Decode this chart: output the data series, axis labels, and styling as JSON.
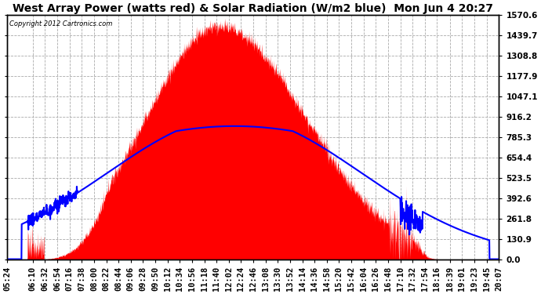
{
  "title": "West Array Power (watts red) & Solar Radiation (W/m2 blue)  Mon Jun 4 20:27",
  "copyright": "Copyright 2012 Cartronics.com",
  "ymax": 1570.6,
  "ymin": 0.0,
  "yticks": [
    0.0,
    130.9,
    261.8,
    392.6,
    523.5,
    654.4,
    785.3,
    916.2,
    1047.1,
    1177.9,
    1308.8,
    1439.7,
    1570.6
  ],
  "x_labels": [
    "05:24",
    "06:10",
    "06:32",
    "06:54",
    "07:16",
    "07:38",
    "08:00",
    "08:22",
    "08:44",
    "09:06",
    "09:28",
    "09:50",
    "10:12",
    "10:34",
    "10:56",
    "11:18",
    "11:40",
    "12:02",
    "12:24",
    "12:46",
    "13:08",
    "13:30",
    "13:52",
    "14:14",
    "14:36",
    "14:58",
    "15:20",
    "15:42",
    "16:04",
    "16:26",
    "16:48",
    "17:10",
    "17:32",
    "17:54",
    "18:16",
    "18:39",
    "19:01",
    "19:23",
    "19:45",
    "20:07"
  ],
  "background_color": "#ffffff",
  "plot_bg_color": "#ffffff",
  "grid_color": "#aaaaaa",
  "red_color": "#ff0000",
  "blue_color": "#0000ff",
  "title_fontsize": 10,
  "tick_fontsize": 7.5
}
